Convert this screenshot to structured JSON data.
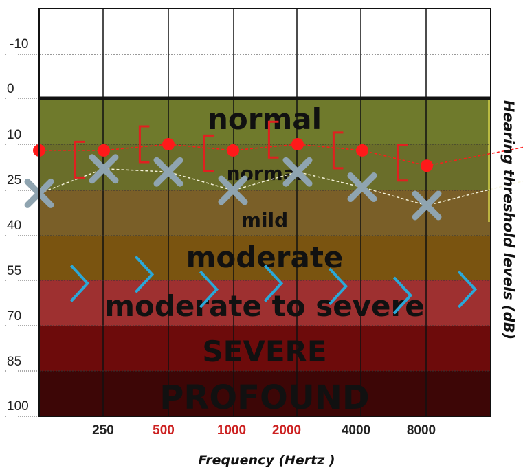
{
  "chart_data": {
    "type": "scatter",
    "xlabel": "Frequency (Hertz )",
    "ylabel": "Hearing threshold levels (dB)",
    "x_tick_labels": [
      {
        "label": "250",
        "color": "#222222"
      },
      {
        "label": "500",
        "color": "#cc2020"
      },
      {
        "label": "1000",
        "color": "#cc2020"
      },
      {
        "label": "2000",
        "color": "#cc2020"
      },
      {
        "label": "4000",
        "color": "#222222"
      },
      {
        "label": "8000",
        "color": "#222222"
      }
    ],
    "y_ticks": [
      "-10",
      "0",
      "10",
      "25",
      "40",
      "55",
      "70",
      "85",
      "100"
    ],
    "ylim": [
      -20,
      105
    ],
    "y_inverted": true,
    "grid": true,
    "bands": [
      {
        "label": "normal",
        "from": 0,
        "to": 15,
        "color": "#6f7a2c"
      },
      {
        "label": "normal",
        "from": 15,
        "to": 30,
        "color": "#6a6e2a"
      },
      {
        "label": "mild",
        "from": 30,
        "to": 45,
        "color": "#7a5f28"
      },
      {
        "label": "moderate",
        "from": 45,
        "to": 59,
        "color": "#7a5410"
      },
      {
        "label": "moderate to severe",
        "from": 59,
        "to": 74,
        "color": "#9e3030"
      },
      {
        "label": "SEVERE",
        "from": 74,
        "to": 89,
        "color": "#6d0b0b"
      },
      {
        "label": "PROFOUND",
        "from": 89,
        "to": 104,
        "color": "#3d0606"
      }
    ],
    "series": [
      {
        "marker": "circle",
        "color": "#ff1a1a",
        "x": [
          0,
          1,
          2,
          3,
          4,
          5,
          6
        ],
        "values": [
          12,
          12,
          10,
          12,
          10,
          12,
          17
        ]
      },
      {
        "marker": "x",
        "color": "#8fa4b0",
        "x": [
          0,
          1,
          2,
          3,
          4,
          5,
          6
        ],
        "values": [
          26,
          18,
          19,
          25,
          19,
          24,
          30
        ]
      },
      {
        "marker": "bracket",
        "color": "#e02020",
        "x": [
          0.6,
          1.6,
          2.6,
          3.6,
          4.6,
          5.6
        ],
        "values": [
          15,
          10,
          13,
          9,
          12,
          16
        ]
      },
      {
        "marker": "chevron",
        "color": "#2aa8d8",
        "x": [
          0.6,
          1.6,
          2.6,
          3.6,
          4.6,
          5.6,
          6.6
        ],
        "values": [
          56,
          53,
          58,
          56,
          57,
          60,
          58
        ]
      }
    ]
  }
}
